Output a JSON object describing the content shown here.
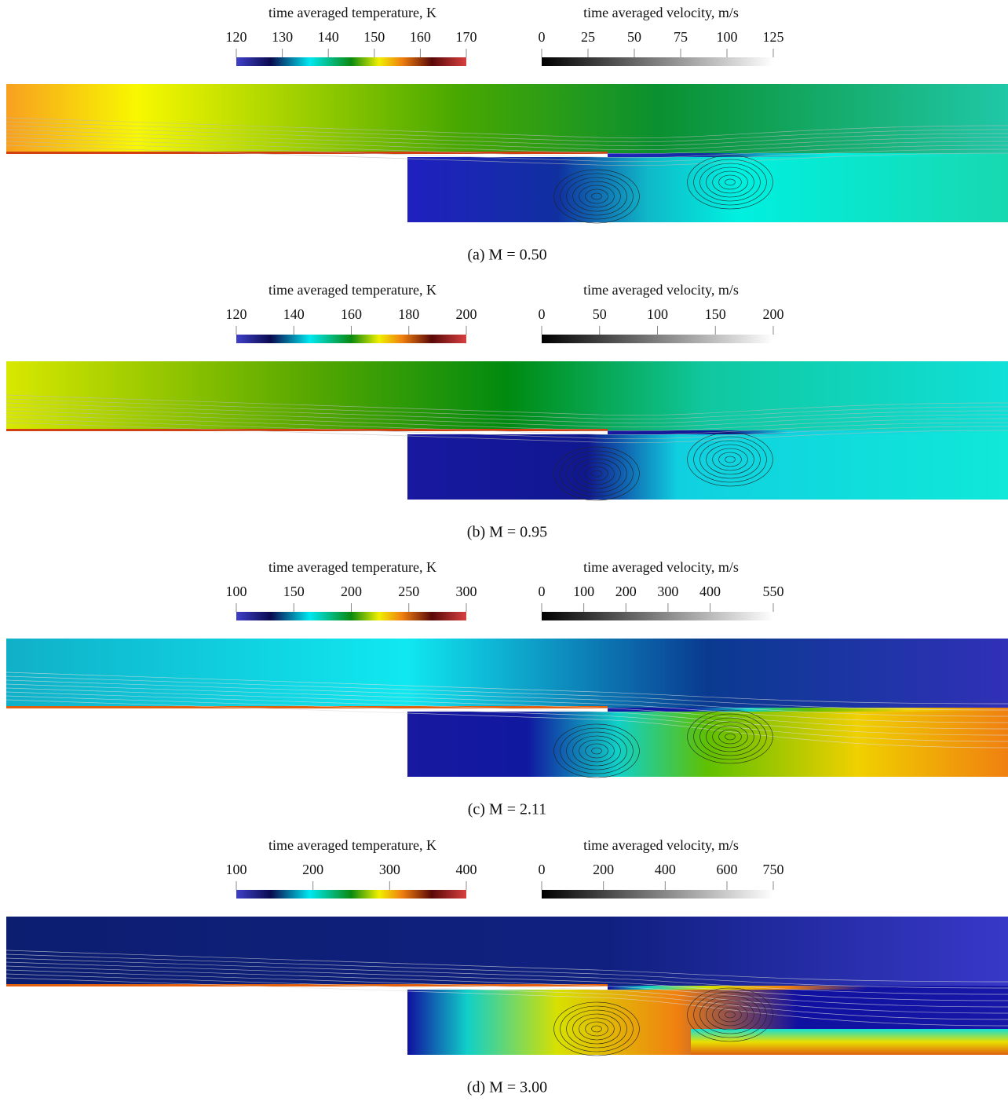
{
  "panels": [
    {
      "temperature_colorbar": {
        "title": "time averaged temperature, K",
        "lim": [
          120,
          170
        ],
        "ticks": [
          120,
          130,
          140,
          150,
          160,
          170
        ]
      },
      "velocity_colorbar": {
        "title": "time averaged velocity, m/s",
        "lim": [
          0,
          125
        ],
        "ticks": [
          0,
          25,
          50,
          75,
          100,
          125
        ]
      },
      "caption": "(a) M = 0.50"
    },
    {
      "temperature_colorbar": {
        "title": "time averaged temperature, K",
        "lim": [
          120,
          200
        ],
        "ticks": [
          120,
          140,
          160,
          180,
          200
        ]
      },
      "velocity_colorbar": {
        "title": "time averaged velocity, m/s",
        "lim": [
          0,
          200
        ],
        "ticks": [
          0,
          50,
          100,
          150,
          200
        ]
      },
      "caption": "(b) M = 0.95"
    },
    {
      "temperature_colorbar": {
        "title": "time averaged temperature, K",
        "lim": [
          100,
          300
        ],
        "ticks": [
          100,
          150,
          200,
          250,
          300
        ]
      },
      "velocity_colorbar": {
        "title": "time averaged velocity, m/s",
        "lim": [
          0,
          550
        ],
        "ticks": [
          0,
          100,
          200,
          300,
          400,
          550
        ]
      },
      "caption": "(c) M = 2.11"
    },
    {
      "temperature_colorbar": {
        "title": "time averaged temperature, K",
        "lim": [
          100,
          400
        ],
        "ticks": [
          100,
          200,
          300,
          400
        ]
      },
      "velocity_colorbar": {
        "title": "time averaged velocity, m/s",
        "lim": [
          0,
          750
        ],
        "ticks": [
          0,
          200,
          400,
          600,
          750
        ]
      },
      "caption": "(d) M = 3.00"
    }
  ]
}
